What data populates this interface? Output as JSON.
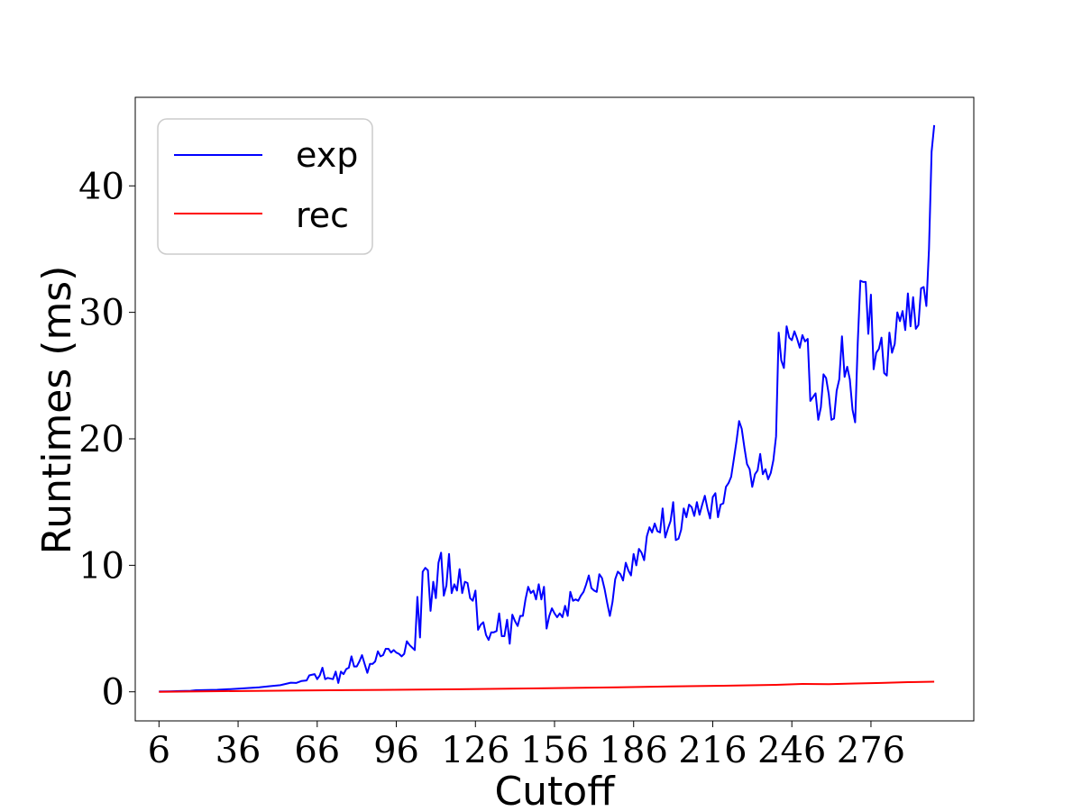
{
  "chart_data": {
    "type": "line",
    "title": "",
    "xlabel": "Cutoff",
    "ylabel": "Runtimes (ms)",
    "xlim": [
      -3,
      315
    ],
    "ylim": [
      -2.3,
      47
    ],
    "xticks": [
      6,
      36,
      66,
      96,
      126,
      156,
      186,
      216,
      246,
      276
    ],
    "yticks": [
      0,
      10,
      20,
      30,
      40
    ],
    "grid": false,
    "legend_position": "top-left",
    "series": [
      {
        "name": "exp",
        "color": "#0000ff",
        "points": [
          [
            6,
            0.02
          ],
          [
            10,
            0.04
          ],
          [
            14,
            0.06
          ],
          [
            18,
            0.08
          ],
          [
            20,
            0.12
          ],
          [
            24,
            0.14
          ],
          [
            28,
            0.16
          ],
          [
            32,
            0.2
          ],
          [
            36,
            0.24
          ],
          [
            40,
            0.3
          ],
          [
            44,
            0.36
          ],
          [
            48,
            0.44
          ],
          [
            52,
            0.52
          ],
          [
            54,
            0.62
          ],
          [
            56,
            0.72
          ],
          [
            58,
            0.7
          ],
          [
            60,
            0.85
          ],
          [
            62,
            0.9
          ],
          [
            63,
            1.3
          ],
          [
            65,
            1.4
          ],
          [
            66,
            1.0
          ],
          [
            67,
            1.3
          ],
          [
            68,
            1.9
          ],
          [
            69,
            1.0
          ],
          [
            70,
            1.1
          ],
          [
            72,
            1.0
          ],
          [
            73,
            1.6
          ],
          [
            74,
            0.7
          ],
          [
            75,
            1.6
          ],
          [
            76,
            1.4
          ],
          [
            77,
            1.8
          ],
          [
            78,
            1.9
          ],
          [
            79,
            2.8
          ],
          [
            80,
            2.0
          ],
          [
            81,
            2.0
          ],
          [
            82,
            2.4
          ],
          [
            83,
            2.9
          ],
          [
            84,
            2.2
          ],
          [
            85,
            1.5
          ],
          [
            86,
            2.2
          ],
          [
            87,
            2.2
          ],
          [
            88,
            2.4
          ],
          [
            89,
            3.2
          ],
          [
            90,
            2.8
          ],
          [
            91,
            2.9
          ],
          [
            92,
            3.4
          ],
          [
            93,
            3.4
          ],
          [
            94,
            3.1
          ],
          [
            95,
            3.3
          ],
          [
            96,
            3.1
          ],
          [
            97,
            3.0
          ],
          [
            98,
            2.8
          ],
          [
            99,
            3.0
          ],
          [
            100,
            4.0
          ],
          [
            101,
            3.7
          ],
          [
            102,
            3.5
          ],
          [
            103,
            3.3
          ],
          [
            104,
            7.5
          ],
          [
            105,
            4.3
          ],
          [
            106,
            9.5
          ],
          [
            107,
            9.8
          ],
          [
            108,
            9.6
          ],
          [
            109,
            6.4
          ],
          [
            110,
            8.7
          ],
          [
            111,
            7.4
          ],
          [
            112,
            10.2
          ],
          [
            113,
            11.0
          ],
          [
            114,
            7.6
          ],
          [
            115,
            8.4
          ],
          [
            116,
            10.9
          ],
          [
            117,
            7.8
          ],
          [
            118,
            8.5
          ],
          [
            119,
            8.0
          ],
          [
            120,
            9.7
          ],
          [
            121,
            7.8
          ],
          [
            122,
            8.7
          ],
          [
            123,
            8.6
          ],
          [
            124,
            7.4
          ],
          [
            125,
            7.2
          ],
          [
            126,
            8.0
          ],
          [
            127,
            4.9
          ],
          [
            128,
            5.3
          ],
          [
            129,
            5.5
          ],
          [
            130,
            4.5
          ],
          [
            131,
            4.1
          ],
          [
            132,
            4.7
          ],
          [
            133,
            4.7
          ],
          [
            134,
            4.8
          ],
          [
            135,
            6.2
          ],
          [
            136,
            4.4
          ],
          [
            137,
            4.4
          ],
          [
            138,
            5.7
          ],
          [
            139,
            3.8
          ],
          [
            140,
            6.1
          ],
          [
            141,
            5.6
          ],
          [
            142,
            5.2
          ],
          [
            143,
            6.0
          ],
          [
            144,
            6.0
          ],
          [
            145,
            7.3
          ],
          [
            146,
            8.3
          ],
          [
            147,
            7.8
          ],
          [
            148,
            8.0
          ],
          [
            149,
            7.3
          ],
          [
            150,
            8.5
          ],
          [
            151,
            7.3
          ],
          [
            152,
            8.3
          ],
          [
            153,
            5.0
          ],
          [
            154,
            6.0
          ],
          [
            155,
            6.6
          ],
          [
            156,
            6.2
          ],
          [
            157,
            5.9
          ],
          [
            158,
            6.2
          ],
          [
            159,
            5.9
          ],
          [
            160,
            6.8
          ],
          [
            161,
            6.0
          ],
          [
            162,
            7.9
          ],
          [
            163,
            7.2
          ],
          [
            164,
            7.3
          ],
          [
            165,
            7.2
          ],
          [
            166,
            7.6
          ],
          [
            167,
            7.9
          ],
          [
            168,
            8.5
          ],
          [
            169,
            9.2
          ],
          [
            170,
            8.2
          ],
          [
            171,
            8.0
          ],
          [
            172,
            7.9
          ],
          [
            173,
            9.3
          ],
          [
            174,
            9.0
          ],
          [
            175,
            8.1
          ],
          [
            176,
            7.0
          ],
          [
            177,
            6.0
          ],
          [
            178,
            7.1
          ],
          [
            179,
            8.9
          ],
          [
            180,
            9.5
          ],
          [
            181,
            9.3
          ],
          [
            182,
            8.8
          ],
          [
            183,
            10.2
          ],
          [
            184,
            9.6
          ],
          [
            185,
            9.2
          ],
          [
            186,
            10.9
          ],
          [
            187,
            10.0
          ],
          [
            188,
            11.3
          ],
          [
            189,
            11.0
          ],
          [
            190,
            10.4
          ],
          [
            191,
            12.3
          ],
          [
            192,
            13.0
          ],
          [
            193,
            12.6
          ],
          [
            194,
            13.3
          ],
          [
            195,
            12.7
          ],
          [
            196,
            12.6
          ],
          [
            197,
            14.5
          ],
          [
            198,
            12.2
          ],
          [
            199,
            12.9
          ],
          [
            200,
            13.5
          ],
          [
            201,
            15.0
          ],
          [
            202,
            12.0
          ],
          [
            203,
            12.1
          ],
          [
            204,
            12.8
          ],
          [
            205,
            14.5
          ],
          [
            206,
            13.8
          ],
          [
            207,
            14.8
          ],
          [
            208,
            14.6
          ],
          [
            209,
            13.9
          ],
          [
            210,
            15.0
          ],
          [
            211,
            14.0
          ],
          [
            212,
            14.8
          ],
          [
            213,
            15.5
          ],
          [
            214,
            14.5
          ],
          [
            215,
            13.7
          ],
          [
            216,
            15.4
          ],
          [
            217,
            15.7
          ],
          [
            218,
            13.8
          ],
          [
            219,
            14.8
          ],
          [
            220,
            14.9
          ],
          [
            221,
            16.2
          ],
          [
            222,
            16.5
          ],
          [
            223,
            17.0
          ],
          [
            224,
            18.4
          ],
          [
            225,
            19.8
          ],
          [
            226,
            21.4
          ],
          [
            227,
            20.8
          ],
          [
            228,
            19.3
          ],
          [
            229,
            18.0
          ],
          [
            230,
            17.6
          ],
          [
            231,
            16.2
          ],
          [
            232,
            17.2
          ],
          [
            233,
            17.5
          ],
          [
            234,
            18.8
          ],
          [
            235,
            17.2
          ],
          [
            236,
            17.6
          ],
          [
            237,
            16.8
          ],
          [
            238,
            17.3
          ],
          [
            239,
            18.3
          ],
          [
            240,
            20.2
          ],
          [
            241,
            28.4
          ],
          [
            242,
            26.2
          ],
          [
            243,
            25.6
          ],
          [
            244,
            28.9
          ],
          [
            245,
            28.0
          ],
          [
            246,
            27.8
          ],
          [
            247,
            28.5
          ],
          [
            248,
            27.9
          ],
          [
            249,
            27.2
          ],
          [
            250,
            28.2
          ],
          [
            251,
            27.7
          ],
          [
            252,
            27.9
          ],
          [
            253,
            23.0
          ],
          [
            254,
            23.3
          ],
          [
            255,
            23.6
          ],
          [
            256,
            21.5
          ],
          [
            257,
            22.5
          ],
          [
            258,
            25.1
          ],
          [
            259,
            24.8
          ],
          [
            260,
            23.5
          ],
          [
            261,
            21.5
          ],
          [
            262,
            21.6
          ],
          [
            263,
            23.8
          ],
          [
            264,
            24.7
          ],
          [
            265,
            28.1
          ],
          [
            266,
            24.9
          ],
          [
            267,
            25.7
          ],
          [
            268,
            24.7
          ],
          [
            269,
            22.3
          ],
          [
            270,
            21.3
          ],
          [
            271,
            27.6
          ],
          [
            272,
            32.5
          ],
          [
            273,
            32.4
          ],
          [
            274,
            32.4
          ],
          [
            275,
            28.3
          ],
          [
            276,
            31.4
          ],
          [
            277,
            25.5
          ],
          [
            278,
            26.8
          ],
          [
            279,
            27.1
          ],
          [
            280,
            28.0
          ],
          [
            281,
            25.2
          ],
          [
            282,
            25.0
          ],
          [
            283,
            28.4
          ],
          [
            284,
            26.8
          ],
          [
            285,
            27.5
          ],
          [
            286,
            30.0
          ],
          [
            287,
            29.3
          ],
          [
            288,
            30.1
          ],
          [
            289,
            28.6
          ],
          [
            290,
            31.5
          ],
          [
            291,
            28.9
          ],
          [
            292,
            31.2
          ],
          [
            293,
            28.7
          ],
          [
            294,
            29.0
          ],
          [
            295,
            31.9
          ],
          [
            296,
            32.0
          ],
          [
            297,
            30.5
          ],
          [
            298,
            35.0
          ],
          [
            299,
            42.7
          ],
          [
            300,
            44.8
          ]
        ]
      },
      {
        "name": "rec",
        "color": "#ff0000",
        "points": [
          [
            6,
            0.0
          ],
          [
            30,
            0.05
          ],
          [
            60,
            0.1
          ],
          [
            90,
            0.15
          ],
          [
            120,
            0.2
          ],
          [
            150,
            0.27
          ],
          [
            180,
            0.35
          ],
          [
            200,
            0.42
          ],
          [
            220,
            0.48
          ],
          [
            240,
            0.55
          ],
          [
            250,
            0.62
          ],
          [
            260,
            0.6
          ],
          [
            270,
            0.66
          ],
          [
            280,
            0.7
          ],
          [
            290,
            0.76
          ],
          [
            300,
            0.8
          ]
        ]
      }
    ]
  }
}
